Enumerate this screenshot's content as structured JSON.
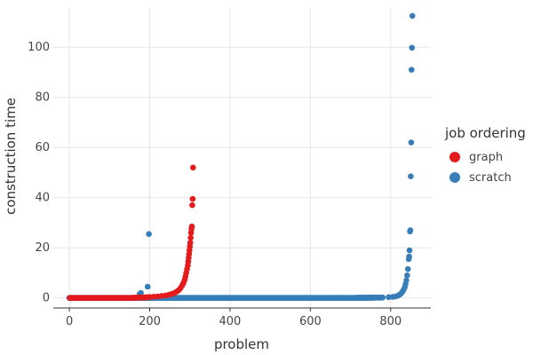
{
  "chart_data": {
    "type": "scatter",
    "xlabel": "problem",
    "ylabel": "construction time",
    "xlim": [
      -40,
      900
    ],
    "ylim": [
      -4,
      116
    ],
    "xticks": [
      0,
      200,
      400,
      600,
      800
    ],
    "yticks": [
      0,
      20,
      40,
      60,
      80,
      100
    ],
    "grid": true,
    "legend": {
      "title": "job ordering",
      "placement": "right",
      "entries": [
        {
          "label": "graph",
          "color": "#e41a1c"
        },
        {
          "label": "scratch",
          "color": "#377eb8"
        }
      ]
    },
    "series": [
      {
        "name": "graph",
        "color": "#e41a1c",
        "n": 310,
        "points": [
          [
            200,
            0.4
          ],
          [
            210,
            0.5
          ],
          [
            220,
            0.6
          ],
          [
            230,
            0.8
          ],
          [
            240,
            1.0
          ],
          [
            248,
            1.3
          ],
          [
            255,
            1.6
          ],
          [
            262,
            2.0
          ],
          [
            268,
            2.6
          ],
          [
            273,
            3.2
          ],
          [
            277,
            4.0
          ],
          [
            281,
            5.0
          ],
          [
            284,
            6.0
          ],
          [
            287,
            7.2
          ],
          [
            289,
            8.5
          ],
          [
            291,
            10.0
          ],
          [
            293,
            11.5
          ],
          [
            295,
            13.0
          ],
          [
            296,
            14.5
          ],
          [
            297,
            16.0
          ],
          [
            298,
            17.5
          ],
          [
            299,
            19.0
          ],
          [
            300,
            20.5
          ],
          [
            301,
            22.0
          ],
          [
            302,
            24.0
          ],
          [
            303,
            26.0
          ],
          [
            304,
            27.5
          ],
          [
            305,
            28.5
          ],
          [
            306,
            37.0
          ],
          [
            307,
            39.5
          ],
          [
            308,
            52.0
          ]
        ]
      },
      {
        "name": "scratch",
        "color": "#377eb8",
        "n": 855,
        "points": [
          [
            175,
            1.5
          ],
          [
            178,
            2.0
          ],
          [
            195,
            4.5
          ],
          [
            198,
            25.5
          ],
          [
            780,
            0.2
          ],
          [
            795,
            0.3
          ],
          [
            805,
            0.4
          ],
          [
            812,
            0.6
          ],
          [
            818,
            0.9
          ],
          [
            822,
            1.3
          ],
          [
            826,
            1.8
          ],
          [
            829,
            2.4
          ],
          [
            832,
            3.2
          ],
          [
            835,
            4.2
          ],
          [
            837,
            5.5
          ],
          [
            839,
            7.0
          ],
          [
            841,
            9.0
          ],
          [
            843,
            11.5
          ],
          [
            845,
            15.5
          ],
          [
            846,
            16.5
          ],
          [
            847,
            19.0
          ],
          [
            848,
            26.5
          ],
          [
            849,
            27.0
          ],
          [
            850,
            48.5
          ],
          [
            851,
            62.0
          ],
          [
            852,
            91.0
          ],
          [
            853,
            99.8
          ],
          [
            854,
            112.5
          ]
        ]
      }
    ]
  }
}
